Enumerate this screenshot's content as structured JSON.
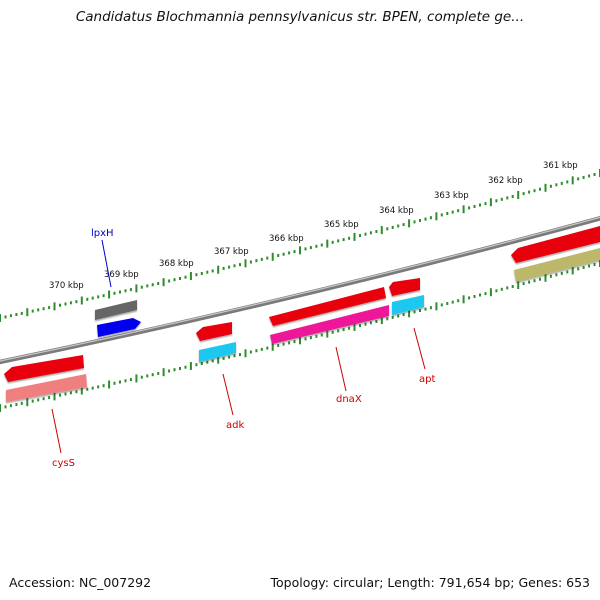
{
  "title": "Candidatus Blochmannia pennsylvanicus str. BPEN, complete ge...",
  "footer": {
    "accession": "Accession: NC_007292",
    "topology": "Topology: circular; Length: 791,654 bp; Genes: 653"
  },
  "ruler_labels": [
    "361 kbp",
    "362 kbp",
    "363 kbp",
    "364 kbp",
    "365 kbp",
    "366 kbp",
    "367 kbp",
    "368 kbp",
    "369 kbp",
    "370 kbp"
  ],
  "colors": {
    "backbone": "#7a7a7a",
    "ruler": "#2e8b2e",
    "gene_red": "#e8000b",
    "gene_gray": "#666666",
    "gene_blue": "#0000ee",
    "gene_cyan": "#1ec8f0",
    "gene_magenta": "#ee1499",
    "gene_pink": "#f07f7f",
    "gene_olive": "#bdb76b",
    "label_red": "#cc0000",
    "label_blue": "#0000cc"
  },
  "gene_labels": [
    {
      "name": "lpxH",
      "color": "#0000cc"
    },
    {
      "name": "adk",
      "color": "#cc0000"
    },
    {
      "name": "dnaX",
      "color": "#cc0000"
    },
    {
      "name": "apt",
      "color": "#cc0000"
    },
    {
      "name": "cysS",
      "color": "#cc0000"
    }
  ]
}
